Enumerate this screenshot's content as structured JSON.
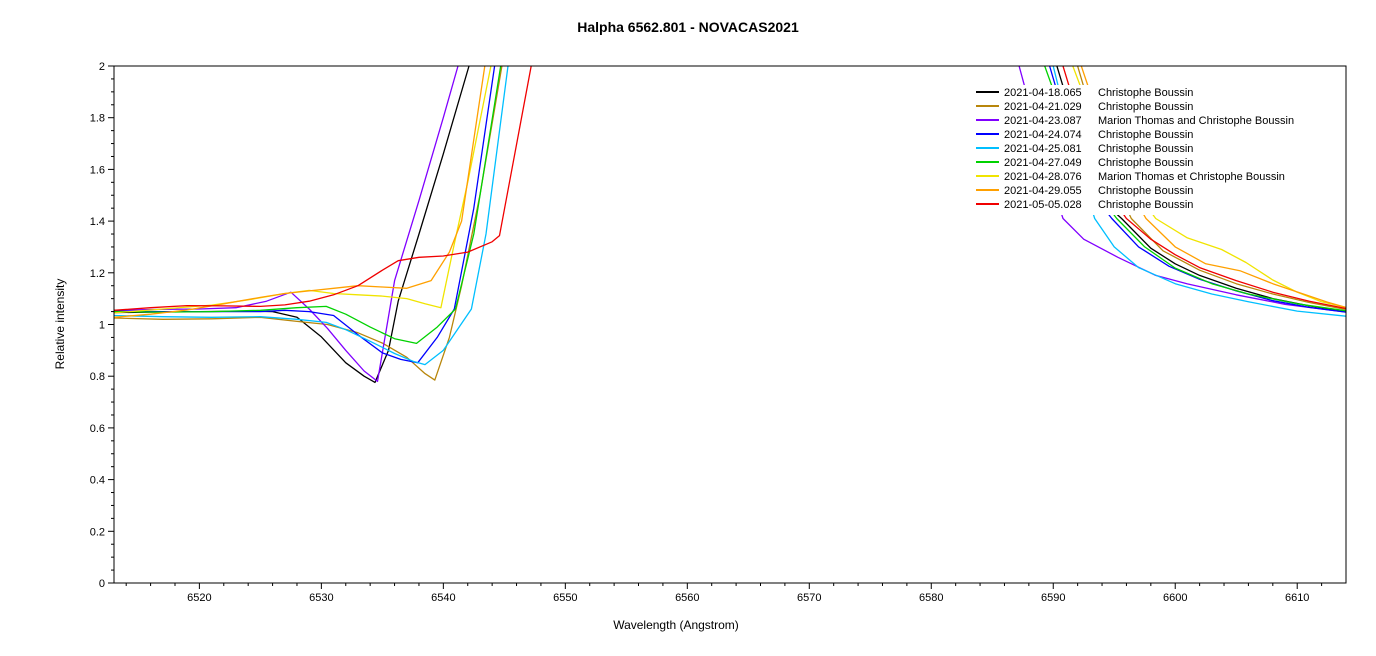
{
  "title": "Halpha 6562.801 - NOVACAS2021",
  "axes": {
    "x_label": "Wavelength (Angstrom)",
    "y_label": "Relative intensity"
  },
  "chart_data": {
    "type": "line",
    "title": "Halpha 6562.801 - NOVACAS2021",
    "xlabel": "Wavelength (Angstrom)",
    "ylabel": "Relative intensity",
    "xlim": [
      6513,
      6614
    ],
    "ylim": [
      0,
      2
    ],
    "grid": false,
    "peak_clipped_above_ymax": true,
    "legend_position": "top-right",
    "x_ticks": {
      "values": [
        6520,
        6530,
        6540,
        6550,
        6560,
        6570,
        6580,
        6590,
        6600,
        6610
      ],
      "labels": [
        "6520",
        "6530",
        "6540",
        "6550",
        "6560",
        "6570",
        "6580",
        "6590",
        "6600",
        "6610"
      ]
    },
    "y_ticks": {
      "values": [
        0,
        0.2,
        0.4,
        0.6,
        0.8,
        1,
        1.2,
        1.4,
        1.6,
        1.8,
        2
      ],
      "labels": [
        "0",
        "0.2",
        "0.4",
        "0.6",
        "0.8",
        "1",
        "1.2",
        "1.4",
        "1.6",
        "1.8",
        "2"
      ]
    },
    "x_minor_step": 2,
    "y_minor_step": 0.05,
    "series": [
      {
        "name": "2021-04-18.065",
        "observer": "Christophe Boussin",
        "color": "#000000",
        "points": [
          [
            6513,
            1.046
          ],
          [
            6516,
            1.048
          ],
          [
            6520,
            1.05
          ],
          [
            6524,
            1.052
          ],
          [
            6526,
            1.05
          ],
          [
            6528,
            1.028
          ],
          [
            6530,
            0.952
          ],
          [
            6532,
            0.852
          ],
          [
            6533.5,
            0.8
          ],
          [
            6534.4,
            0.776
          ],
          [
            6535.5,
            0.9
          ],
          [
            6536.3,
            1.09
          ],
          [
            6538,
            1.35
          ],
          [
            6540,
            1.66
          ],
          [
            6542.1,
            2.0
          ],
          [
            6560,
            9
          ],
          [
            6590.3,
            2.0
          ],
          [
            6593.5,
            1.5
          ],
          [
            6595.6,
            1.41
          ],
          [
            6598,
            1.295
          ],
          [
            6600,
            1.235
          ],
          [
            6602,
            1.19
          ],
          [
            6605,
            1.14
          ],
          [
            6608,
            1.1
          ],
          [
            6611,
            1.072
          ],
          [
            6614,
            1.05
          ]
        ]
      },
      {
        "name": "2021-04-21.029",
        "observer": "Christophe Boussin",
        "color": "#b8860b",
        "points": [
          [
            6513,
            1.025
          ],
          [
            6517,
            1.02
          ],
          [
            6521,
            1.022
          ],
          [
            6525,
            1.028
          ],
          [
            6528,
            1.012
          ],
          [
            6530.5,
            1.0
          ],
          [
            6533,
            0.968
          ],
          [
            6535,
            0.928
          ],
          [
            6537,
            0.873
          ],
          [
            6538.5,
            0.81
          ],
          [
            6539.3,
            0.785
          ],
          [
            6540.5,
            0.95
          ],
          [
            6541.5,
            1.15
          ],
          [
            6543,
            1.5
          ],
          [
            6544.8,
            2.0
          ],
          [
            6560,
            9
          ],
          [
            6592.0,
            2.0
          ],
          [
            6594.5,
            1.6
          ],
          [
            6596.4,
            1.41
          ],
          [
            6599,
            1.285
          ],
          [
            6602,
            1.21
          ],
          [
            6605,
            1.158
          ],
          [
            6608,
            1.118
          ],
          [
            6611,
            1.085
          ],
          [
            6614,
            1.058
          ]
        ]
      },
      {
        "name": "2021-04-23.087",
        "observer": "Marion Thomas and Christophe Boussin",
        "color": "#8000ff",
        "points": [
          [
            6513,
            1.055
          ],
          [
            6516,
            1.058
          ],
          [
            6520,
            1.06
          ],
          [
            6523,
            1.065
          ],
          [
            6525.5,
            1.09
          ],
          [
            6527.5,
            1.125
          ],
          [
            6529,
            1.06
          ],
          [
            6530.5,
            0.985
          ],
          [
            6532,
            0.9
          ],
          [
            6533.5,
            0.82
          ],
          [
            6534.6,
            0.78
          ],
          [
            6536,
            1.17
          ],
          [
            6538,
            1.48
          ],
          [
            6540,
            1.8
          ],
          [
            6541.2,
            2.0
          ],
          [
            6560,
            9
          ],
          [
            6587.2,
            2.0
          ],
          [
            6589.5,
            1.6
          ],
          [
            6590.8,
            1.41
          ],
          [
            6592.5,
            1.33
          ],
          [
            6595.3,
            1.26
          ],
          [
            6598.4,
            1.19
          ],
          [
            6601,
            1.157
          ],
          [
            6605,
            1.115
          ],
          [
            6609,
            1.078
          ],
          [
            6614,
            1.048
          ]
        ]
      },
      {
        "name": "2021-04-24.074",
        "observer": "Christophe Boussin",
        "color": "#0000ff",
        "points": [
          [
            6513,
            1.052
          ],
          [
            6517,
            1.05
          ],
          [
            6521,
            1.05
          ],
          [
            6525,
            1.05
          ],
          [
            6527,
            1.055
          ],
          [
            6529,
            1.05
          ],
          [
            6531,
            1.035
          ],
          [
            6533,
            0.96
          ],
          [
            6535,
            0.89
          ],
          [
            6536.5,
            0.865
          ],
          [
            6537.9,
            0.852
          ],
          [
            6539.5,
            0.95
          ],
          [
            6540.9,
            1.06
          ],
          [
            6542.5,
            1.45
          ],
          [
            6544.2,
            2.0
          ],
          [
            6560,
            9
          ],
          [
            6589.7,
            2.0
          ],
          [
            6592.5,
            1.55
          ],
          [
            6594.8,
            1.41
          ],
          [
            6597,
            1.3
          ],
          [
            6599.5,
            1.225
          ],
          [
            6602,
            1.175
          ],
          [
            6605,
            1.13
          ],
          [
            6608,
            1.092
          ],
          [
            6611,
            1.066
          ],
          [
            6614,
            1.048
          ]
        ]
      },
      {
        "name": "2021-04-25.081",
        "observer": "Christophe Boussin",
        "color": "#00bfff",
        "points": [
          [
            6513,
            1.035
          ],
          [
            6517,
            1.03
          ],
          [
            6521,
            1.028
          ],
          [
            6525,
            1.03
          ],
          [
            6528,
            1.02
          ],
          [
            6530.4,
            1.008
          ],
          [
            6532,
            0.98
          ],
          [
            6534,
            0.935
          ],
          [
            6536,
            0.888
          ],
          [
            6537.5,
            0.858
          ],
          [
            6538.5,
            0.845
          ],
          [
            6540,
            0.9
          ],
          [
            6542.3,
            1.06
          ],
          [
            6543.5,
            1.35
          ],
          [
            6545.3,
            2.0
          ],
          [
            6560,
            9
          ],
          [
            6590.0,
            2.0
          ],
          [
            6592,
            1.62
          ],
          [
            6593.4,
            1.41
          ],
          [
            6595,
            1.3
          ],
          [
            6597,
            1.22
          ],
          [
            6600,
            1.158
          ],
          [
            6603,
            1.118
          ],
          [
            6606,
            1.088
          ],
          [
            6610,
            1.052
          ],
          [
            6614,
            1.032
          ]
        ]
      },
      {
        "name": "2021-04-27.049",
        "observer": "Christophe Boussin",
        "color": "#00d200",
        "points": [
          [
            6513,
            1.05
          ],
          [
            6517,
            1.048
          ],
          [
            6521,
            1.05
          ],
          [
            6525,
            1.055
          ],
          [
            6528,
            1.065
          ],
          [
            6530.4,
            1.07
          ],
          [
            6532,
            1.04
          ],
          [
            6534,
            0.99
          ],
          [
            6536,
            0.945
          ],
          [
            6537.8,
            0.927
          ],
          [
            6539.5,
            0.99
          ],
          [
            6541,
            1.06
          ],
          [
            6542.5,
            1.35
          ],
          [
            6544.7,
            2.0
          ],
          [
            6560,
            9
          ],
          [
            6589.3,
            2.0
          ],
          [
            6592.5,
            1.58
          ],
          [
            6595.2,
            1.41
          ],
          [
            6597.5,
            1.3
          ],
          [
            6600,
            1.218
          ],
          [
            6603,
            1.158
          ],
          [
            6606,
            1.118
          ],
          [
            6610,
            1.08
          ],
          [
            6614,
            1.053
          ]
        ]
      },
      {
        "name": "2021-04-28.076",
        "observer": "Marion Thomas et Christophe Boussin",
        "color": "#f0e400",
        "points": [
          [
            6513,
            1.045
          ],
          [
            6517,
            1.06
          ],
          [
            6521,
            1.075
          ],
          [
            6524,
            1.095
          ],
          [
            6527,
            1.12
          ],
          [
            6529,
            1.132
          ],
          [
            6531,
            1.12
          ],
          [
            6533,
            1.115
          ],
          [
            6535,
            1.11
          ],
          [
            6537,
            1.1
          ],
          [
            6538.5,
            1.08
          ],
          [
            6539.8,
            1.065
          ],
          [
            6540.8,
            1.29
          ],
          [
            6542,
            1.55
          ],
          [
            6543.9,
            2.0
          ],
          [
            6560,
            9
          ],
          [
            6591.6,
            2.0
          ],
          [
            6594,
            1.7
          ],
          [
            6598.4,
            1.41
          ],
          [
            6601,
            1.335
          ],
          [
            6603.8,
            1.29
          ],
          [
            6605.8,
            1.24
          ],
          [
            6608,
            1.172
          ],
          [
            6610,
            1.125
          ],
          [
            6612,
            1.088
          ],
          [
            6614,
            1.066
          ]
        ]
      },
      {
        "name": "2021-04-29.055",
        "observer": "Christophe Boussin",
        "color": "#ffa000",
        "points": [
          [
            6513,
            1.028
          ],
          [
            6516,
            1.04
          ],
          [
            6519,
            1.056
          ],
          [
            6522,
            1.08
          ],
          [
            6525,
            1.105
          ],
          [
            6527,
            1.12
          ],
          [
            6529,
            1.13
          ],
          [
            6531,
            1.14
          ],
          [
            6533,
            1.15
          ],
          [
            6535,
            1.145
          ],
          [
            6537,
            1.14
          ],
          [
            6539,
            1.17
          ],
          [
            6540.5,
            1.28
          ],
          [
            6541.5,
            1.4
          ],
          [
            6543.4,
            2.0
          ],
          [
            6560,
            9
          ],
          [
            6592.3,
            2.0
          ],
          [
            6595,
            1.62
          ],
          [
            6597.6,
            1.41
          ],
          [
            6600,
            1.3
          ],
          [
            6602.5,
            1.235
          ],
          [
            6605.3,
            1.208
          ],
          [
            6608,
            1.158
          ],
          [
            6610.5,
            1.118
          ],
          [
            6612.5,
            1.086
          ],
          [
            6614,
            1.066
          ]
        ]
      },
      {
        "name": "2021-05-05.028",
        "observer": "Christophe Boussin",
        "color": "#f00000",
        "points": [
          [
            6513,
            1.055
          ],
          [
            6516,
            1.065
          ],
          [
            6519,
            1.073
          ],
          [
            6522,
            1.072
          ],
          [
            6525,
            1.07
          ],
          [
            6527,
            1.076
          ],
          [
            6529,
            1.09
          ],
          [
            6531,
            1.115
          ],
          [
            6533,
            1.15
          ],
          [
            6535,
            1.21
          ],
          [
            6536.3,
            1.247
          ],
          [
            6538,
            1.26
          ],
          [
            6540,
            1.265
          ],
          [
            6542,
            1.28
          ],
          [
            6544,
            1.32
          ],
          [
            6544.6,
            1.344
          ],
          [
            6547.2,
            2.0
          ],
          [
            6560,
            9
          ],
          [
            6590.8,
            2.0
          ],
          [
            6593.5,
            1.58
          ],
          [
            6596,
            1.41
          ],
          [
            6598,
            1.33
          ],
          [
            6600,
            1.27
          ],
          [
            6602,
            1.22
          ],
          [
            6605,
            1.17
          ],
          [
            6608,
            1.125
          ],
          [
            6611,
            1.09
          ],
          [
            6614,
            1.062
          ]
        ]
      }
    ]
  }
}
